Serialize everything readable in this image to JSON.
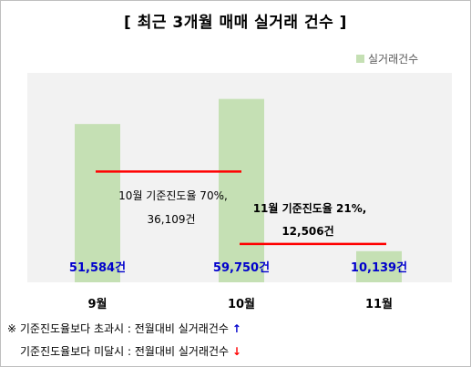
{
  "chart_data": {
    "type": "bar",
    "title": "[ 최근 3개월 매매 실거래 건수 ]",
    "categories": [
      "9월",
      "10월",
      "11월"
    ],
    "series": [
      {
        "name": "실거래건수",
        "values": [
          51584,
          59750,
          10139
        ],
        "color": "#c5e0b4"
      }
    ],
    "data_labels": [
      "51,584건",
      "59,750건",
      "10,139건"
    ],
    "legend_position": "top-right",
    "grid": false,
    "ylim": [
      0,
      70000
    ],
    "reference_lines": [
      {
        "from_category": 0,
        "to_category": 1,
        "value": 36109,
        "label_line1": "10월 기준진도율 70%,",
        "label_line2": "36,109건",
        "color": "#ff0000"
      },
      {
        "from_category": 1,
        "to_category": 2,
        "value": 12506,
        "label_line1": "11월 기준진도율 21%,",
        "label_line2": "12,506건",
        "color": "#ff0000"
      }
    ]
  },
  "notes": {
    "line1_prefix": "※ 기준진도율보다 초과시 : 전월대비 실거래건수",
    "line1_arrow": "↑",
    "line2_prefix": "기준진도율보다 미달시 : 전월대비 실거래건수",
    "line2_arrow": "↓",
    "arrow_up_color": "#0000cc",
    "arrow_down_color": "#ff0000"
  }
}
